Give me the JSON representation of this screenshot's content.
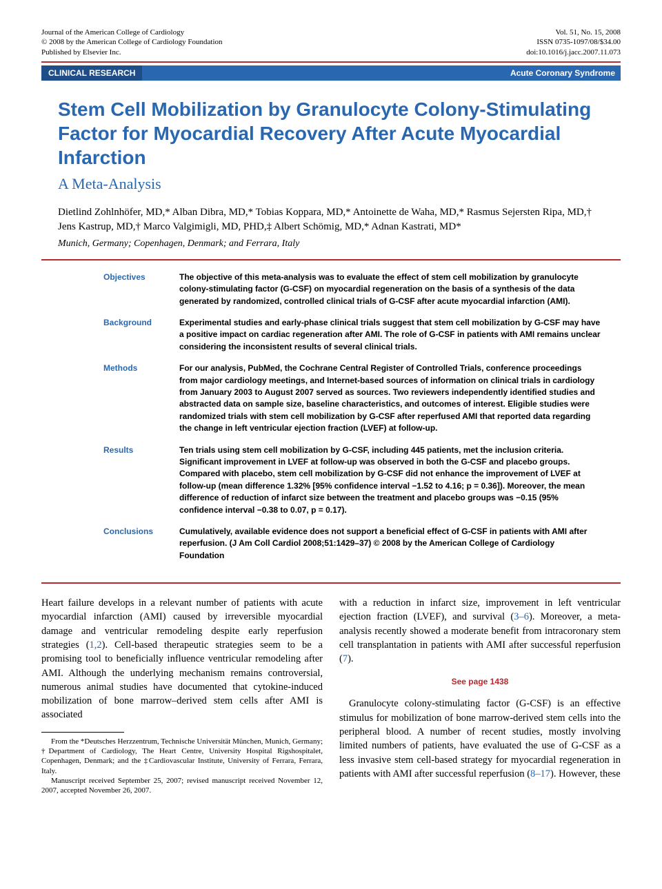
{
  "header": {
    "journal_line1": "Journal of the American College of Cardiology",
    "journal_line2": "© 2008 by the American College of Cardiology Foundation",
    "journal_line3": "Published by Elsevier Inc.",
    "vol_line": "Vol. 51, No. 15, 2008",
    "issn_line": "ISSN 0735-1097/08/$34.00",
    "doi_line": "doi:10.1016/j.jacc.2007.11.073"
  },
  "section_bar": {
    "left": "CLINICAL RESEARCH",
    "right": "Acute Coronary Syndrome"
  },
  "title": "Stem Cell Mobilization by Granulocyte Colony-Stimulating Factor for Myocardial Recovery After Acute Myocardial Infarction",
  "subtitle": "A Meta-Analysis",
  "authors": "Dietlind Zohlnhöfer, MD,* Alban Dibra, MD,* Tobias Koppara, MD,* Antoinette de Waha, MD,* Rasmus Sejersten Ripa, MD,† Jens Kastrup, MD,† Marco Valgimigli, MD, PHD,‡ Albert Schömig, MD,* Adnan Kastrati, MD*",
  "affiliations": "Munich, Germany; Copenhagen, Denmark; and Ferrara, Italy",
  "abstract": {
    "objectives": "The objective of this meta-analysis was to evaluate the effect of stem cell mobilization by granulocyte colony-stimulating factor (G-CSF) on myocardial regeneration on the basis of a synthesis of the data generated by randomized, controlled clinical trials of G-CSF after acute myocardial infarction (AMI).",
    "background": "Experimental studies and early-phase clinical trials suggest that stem cell mobilization by G-CSF may have a positive impact on cardiac regeneration after AMI. The role of G-CSF in patients with AMI remains unclear considering the inconsistent results of several clinical trials.",
    "methods": "For our analysis, PubMed, the Cochrane Central Register of Controlled Trials, conference proceedings from major cardiology meetings, and Internet-based sources of information on clinical trials in cardiology from January 2003 to August 2007 served as sources. Two reviewers independently identified studies and abstracted data on sample size, baseline characteristics, and outcomes of interest. Eligible studies were randomized trials with stem cell mobilization by G-CSF after reperfused AMI that reported data regarding the change in left ventricular ejection fraction (LVEF) at follow-up.",
    "results": "Ten trials using stem cell mobilization by G-CSF, including 445 patients, met the inclusion criteria. Significant improvement in LVEF at follow-up was observed in both the G-CSF and placebo groups. Compared with placebo, stem cell mobilization by G-CSF did not enhance the improvement of LVEF at follow-up (mean difference 1.32% [95% confidence interval −1.52 to 4.16; p = 0.36]). Moreover, the mean difference of reduction of infarct size between the treatment and placebo groups was −0.15 (95% confidence interval −0.38 to 0.07, p = 0.17).",
    "conclusions": "Cumulatively, available evidence does not support a beneficial effect of G-CSF in patients with AMI after reperfusion.   (J Am Coll Cardiol 2008;51:1429–37) © 2008 by the American College of Cardiology Foundation"
  },
  "abstract_labels": {
    "objectives": "Objectives",
    "background": "Background",
    "methods": "Methods",
    "results": "Results",
    "conclusions": "Conclusions"
  },
  "body": {
    "col1_p1": "Heart failure develops in a relevant number of patients with acute myocardial infarction (AMI) caused by irreversible myocardial damage and ventricular remodeling despite early reperfusion strategies (",
    "col1_ref1": "1,2",
    "col1_p1b": "). Cell-based therapeutic strategies seem to be a promising tool to beneficially influence ventricular remodeling after AMI. Although the underlying mechanism remains controversial, numerous animal studies have documented that cytokine-induced mobilization of bone marrow–derived stem cells after AMI is associated",
    "col2_p1": "with a reduction in infarct size, improvement in left ventricular ejection fraction (LVEF), and survival (",
    "col2_ref1": "3–6",
    "col2_p1b": "). Moreover, a meta-analysis recently showed a moderate benefit from intracoronary stem cell transplantation in patients with AMI after successful reperfusion (",
    "col2_ref2": "7",
    "col2_p1c": ").",
    "see_page": "See page 1438",
    "col2_p2": "Granulocyte colony-stimulating factor (G-CSF) is an effective stimulus for mobilization of bone marrow-derived stem cells into the peripheral blood. A number of recent studies, mostly involving limited numbers of patients, have evaluated the use of G-CSF as a less invasive stem cell-based strategy for myocardial regeneration in patients with AMI after successful reperfusion (",
    "col2_ref3": "8–17",
    "col2_p2b": "). However, these"
  },
  "footnote": {
    "p1": "From the *Deutsches Herzzentrum, Technische Universität München, Munich, Germany; †Department of Cardiology, The Heart Centre, University Hospital Rigshospitalet, Copenhagen, Denmark; and the ‡Cardiovascular Institute, University of Ferrara, Ferrara, Italy.",
    "p2": "Manuscript received September 25, 2007; revised manuscript received November 12, 2007, accepted November 26, 2007."
  },
  "colors": {
    "blue": "#2968b0",
    "darkblue": "#1e4d87",
    "red": "#b8292f",
    "text": "#000000",
    "bg": "#ffffff"
  }
}
